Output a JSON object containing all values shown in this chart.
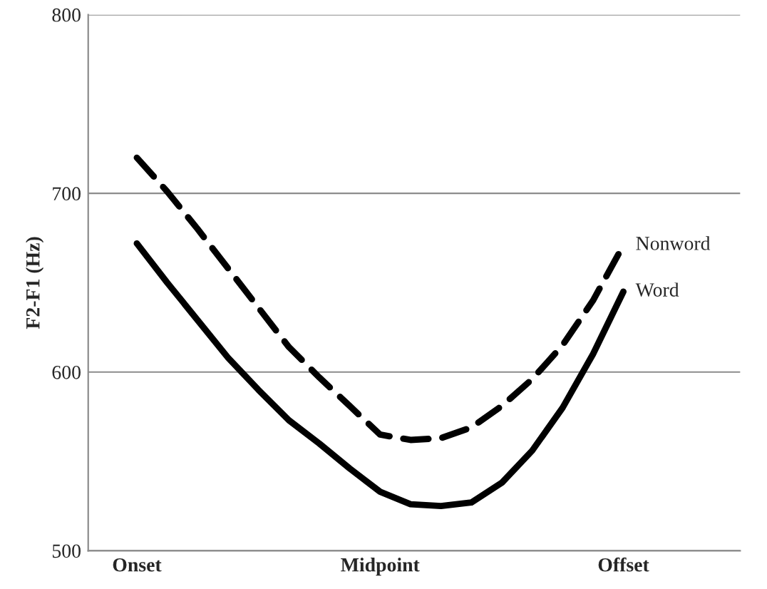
{
  "chart_data": {
    "type": "line",
    "ylabel": "F2-F1 (Hz)",
    "categories": [
      "Onset",
      null,
      null,
      null,
      null,
      null,
      null,
      null,
      "Midpoint",
      null,
      null,
      null,
      null,
      null,
      null,
      null,
      "Offset"
    ],
    "series": [
      {
        "name": "Nonword",
        "color": "#000000",
        "line_style": "dashed",
        "values": [
          720,
          701,
          680,
          658,
          636,
          614,
          597,
          581,
          565,
          562,
          563,
          569,
          581,
          596,
          615,
          640,
          671
        ]
      },
      {
        "name": "Word",
        "color": "#000000",
        "line_style": "solid",
        "values": [
          672,
          650,
          629,
          608,
          590,
          573,
          560,
          546,
          533,
          526,
          525,
          527,
          538,
          556,
          580,
          610,
          645
        ]
      }
    ],
    "ylim": [
      500,
      800
    ],
    "yticks": [
      500,
      600,
      700,
      800
    ],
    "grid": "y",
    "legend": false,
    "marker": "none"
  }
}
